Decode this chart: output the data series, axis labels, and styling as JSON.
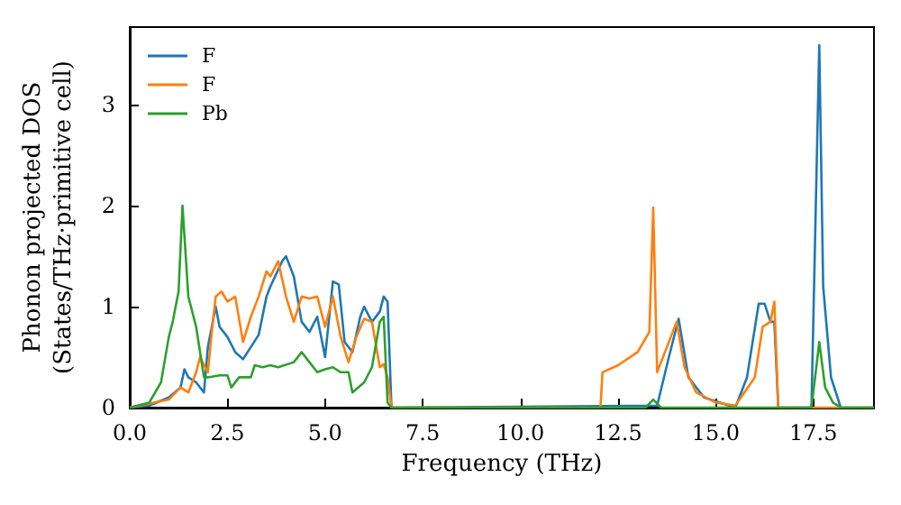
{
  "chart_data": {
    "type": "line",
    "xlabel": "Frequency (THz)",
    "ylabel": "Phonon projected DOS\n(States/THz·primitive cell)",
    "xlim": [
      0,
      19.05
    ],
    "ylim": [
      0,
      3.77
    ],
    "xticks": [
      {
        "value": 0,
        "label": "0.0"
      },
      {
        "value": 2.5,
        "label": "2.5"
      },
      {
        "value": 5,
        "label": "5.0"
      },
      {
        "value": 7.5,
        "label": "7.5"
      },
      {
        "value": 10,
        "label": "10.0"
      },
      {
        "value": 12.5,
        "label": "12.5"
      },
      {
        "value": 15,
        "label": "15.0"
      },
      {
        "value": 17.5,
        "label": "17.5"
      }
    ],
    "yticks": [
      0,
      1,
      2,
      3
    ],
    "grid": false,
    "legend": "top left",
    "marker": "none",
    "line_style": "solid",
    "series": [
      {
        "name": "F",
        "color": "#1f77b4",
        "x": [
          0,
          0.5,
          1.0,
          1.3,
          1.4,
          1.5,
          1.7,
          1.9,
          2.0,
          2.2,
          2.3,
          2.5,
          2.7,
          2.9,
          3.1,
          3.3,
          3.5,
          3.6,
          3.9,
          4.0,
          4.2,
          4.4,
          4.6,
          4.8,
          5.0,
          5.2,
          5.35,
          5.5,
          5.7,
          5.9,
          6.0,
          6.2,
          6.4,
          6.5,
          6.6,
          6.7,
          13.5,
          13.8,
          14.05,
          14.3,
          14.7,
          15.5,
          15.8,
          16.1,
          16.25,
          16.4,
          16.5,
          16.6,
          17.45,
          17.65,
          17.75,
          17.95,
          18.2,
          19.05
        ],
        "values": [
          0,
          0.02,
          0.1,
          0.2,
          0.38,
          0.3,
          0.25,
          0.15,
          0.6,
          1.0,
          0.8,
          0.7,
          0.55,
          0.48,
          0.6,
          0.72,
          1.1,
          1.2,
          1.45,
          1.5,
          1.3,
          0.85,
          0.75,
          0.9,
          0.5,
          1.25,
          1.22,
          0.65,
          0.55,
          0.9,
          1.0,
          0.85,
          0.95,
          1.1,
          1.05,
          0,
          0.02,
          0.5,
          0.88,
          0.3,
          0.1,
          0,
          0.3,
          1.03,
          1.03,
          0.85,
          0.85,
          0,
          0,
          3.59,
          1.2,
          0.3,
          0,
          0
        ]
      },
      {
        "name": "F",
        "color": "#ff7f0e",
        "x": [
          0,
          1.0,
          1.3,
          1.5,
          1.7,
          1.8,
          2.0,
          2.1,
          2.2,
          2.35,
          2.5,
          2.7,
          2.9,
          3.1,
          3.3,
          3.5,
          3.6,
          3.8,
          4.0,
          4.2,
          4.4,
          4.6,
          4.8,
          5.0,
          5.2,
          5.4,
          5.6,
          5.8,
          6.0,
          6.2,
          6.4,
          6.5,
          6.6,
          6.7,
          12.05,
          12.1,
          12.5,
          13.0,
          13.3,
          13.4,
          13.5,
          14.0,
          14.2,
          14.5,
          15.0,
          15.5,
          16.0,
          16.2,
          16.4,
          16.5,
          16.6,
          19.05
        ],
        "values": [
          0,
          0.08,
          0.2,
          0.15,
          0.35,
          0.5,
          0.35,
          0.75,
          1.1,
          1.15,
          1.05,
          1.1,
          0.65,
          0.9,
          1.1,
          1.35,
          1.3,
          1.45,
          1.1,
          0.85,
          1.1,
          1.08,
          1.1,
          0.8,
          1.1,
          0.7,
          0.45,
          0.7,
          0.88,
          0.85,
          0.4,
          0.43,
          0.3,
          0,
          0,
          0.35,
          0.42,
          0.55,
          0.75,
          1.98,
          0.35,
          0.85,
          0.4,
          0.15,
          0.05,
          0.02,
          0.3,
          0.8,
          0.85,
          1.05,
          0,
          0
        ]
      },
      {
        "name": "Pb",
        "color": "#2ca02c",
        "x": [
          0,
          0.5,
          0.8,
          1.0,
          1.1,
          1.25,
          1.35,
          1.5,
          1.7,
          1.9,
          2.0,
          2.3,
          2.5,
          2.6,
          2.8,
          3.1,
          3.2,
          3.4,
          3.6,
          3.8,
          4.2,
          4.4,
          4.6,
          4.8,
          5.0,
          5.2,
          5.4,
          5.6,
          5.7,
          6.0,
          6.2,
          6.4,
          6.5,
          6.6,
          6.7,
          13.2,
          13.4,
          13.6,
          17.45,
          17.65,
          17.8,
          18.0,
          18.2,
          19.05
        ],
        "values": [
          0,
          0.05,
          0.25,
          0.7,
          0.85,
          1.15,
          2.0,
          1.1,
          0.8,
          0.3,
          0.3,
          0.32,
          0.32,
          0.2,
          0.3,
          0.3,
          0.42,
          0.4,
          0.42,
          0.4,
          0.45,
          0.55,
          0.45,
          0.35,
          0.38,
          0.4,
          0.35,
          0.35,
          0.15,
          0.25,
          0.4,
          0.85,
          0.9,
          0.05,
          0,
          0,
          0.08,
          0,
          0,
          0.65,
          0.2,
          0.05,
          0,
          0
        ]
      }
    ]
  }
}
